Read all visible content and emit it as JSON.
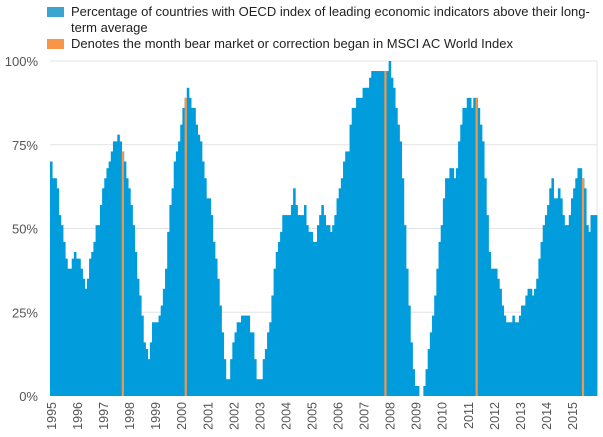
{
  "colors": {
    "series": "#009cdc",
    "marker": "#f79646",
    "grid": "#e4e4e4",
    "text": "#555555"
  },
  "legend": {
    "series_label": "Percentage of countries with OECD index of leading economic indicators above their long-term average",
    "marker_label": "Denotes the month bear market or correction began in MSCI AC World Index"
  },
  "chart_data": {
    "type": "bar",
    "title": "",
    "xlabel": "",
    "ylabel": "",
    "ylim": [
      0,
      100
    ],
    "yticks": [
      0,
      25,
      50,
      75,
      100
    ],
    "ytick_labels": [
      "0%",
      "25%",
      "50%",
      "75%",
      "100%"
    ],
    "x_start": "1995-01",
    "x_frequency": "monthly",
    "xtick_labels": [
      "1995",
      "1996",
      "1997",
      "1998",
      "1999",
      "2000",
      "2001",
      "2002",
      "2003",
      "2004",
      "2005",
      "2006",
      "2007",
      "2008",
      "2009",
      "2010",
      "2011",
      "2012",
      "2013",
      "2014",
      "2015"
    ],
    "grid": true,
    "legend_position": "top",
    "series": [
      {
        "name": "Percentage of countries with OECD index of leading economic indicators above their long-term average",
        "values": [
          70,
          65,
          65,
          62,
          54,
          51,
          46,
          41,
          38,
          38,
          41,
          43,
          41,
          41,
          38,
          35,
          32,
          35,
          41,
          43,
          46,
          51,
          51,
          57,
          62,
          65,
          68,
          70,
          73,
          76,
          76,
          78,
          76,
          73,
          70,
          65,
          62,
          57,
          51,
          43,
          35,
          30,
          24,
          16,
          14,
          11,
          16,
          22,
          22,
          22,
          24,
          27,
          32,
          38,
          49,
          57,
          62,
          70,
          73,
          76,
          81,
          86,
          89,
          92,
          89,
          86,
          86,
          81,
          78,
          76,
          70,
          65,
          59,
          59,
          54,
          46,
          41,
          35,
          27,
          19,
          11,
          5,
          5,
          11,
          16,
          19,
          22,
          22,
          24,
          24,
          24,
          24,
          19,
          19,
          11,
          5,
          5,
          5,
          11,
          14,
          19,
          22,
          30,
          38,
          43,
          46,
          49,
          54,
          54,
          54,
          54,
          57,
          62,
          57,
          54,
          54,
          54,
          57,
          51,
          49,
          49,
          46,
          46,
          51,
          54,
          57,
          54,
          51,
          51,
          49,
          51,
          54,
          59,
          62,
          65,
          70,
          73,
          73,
          81,
          86,
          86,
          89,
          89,
          89,
          92,
          92,
          92,
          95,
          97,
          97,
          97,
          97,
          97,
          97,
          97,
          97,
          100,
          95,
          92,
          86,
          81,
          76,
          65,
          51,
          38,
          27,
          16,
          8,
          3,
          3,
          0,
          0,
          3,
          8,
          14,
          19,
          24,
          30,
          38,
          46,
          51,
          59,
          65,
          65,
          68,
          68,
          65,
          68,
          76,
          81,
          86,
          86,
          89,
          89,
          86,
          89,
          89,
          86,
          81,
          76,
          65,
          54,
          43,
          38,
          38,
          38,
          35,
          32,
          27,
          24,
          22,
          22,
          22,
          24,
          22,
          22,
          24,
          27,
          27,
          30,
          32,
          32,
          30,
          32,
          35,
          41,
          46,
          51,
          54,
          57,
          62,
          65,
          59,
          59,
          62,
          59,
          54,
          51,
          51,
          54,
          59,
          62,
          65,
          68,
          68,
          65,
          62,
          51,
          49,
          54,
          54,
          54
        ]
      }
    ],
    "markers": {
      "name": "Denotes the month bear market or correction began in MSCI AC World Index",
      "months": [
        "1997-10",
        "2000-03",
        "2007-11",
        "2011-05",
        "2015-06"
      ]
    }
  }
}
